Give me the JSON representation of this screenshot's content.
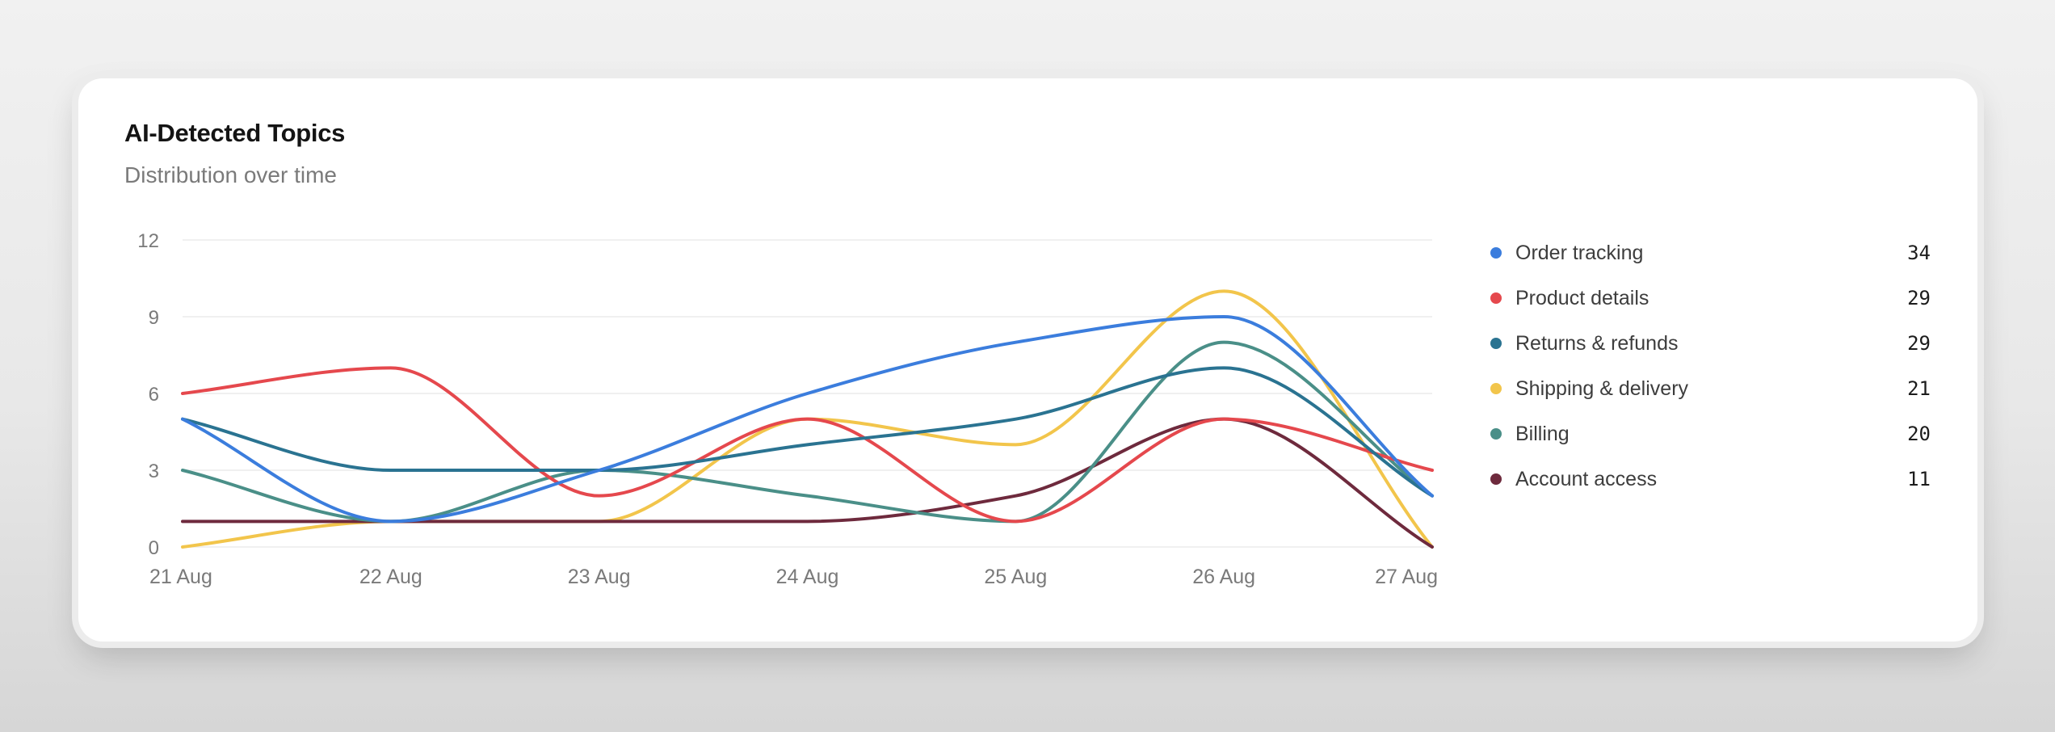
{
  "card": {
    "title": "AI-Detected Topics",
    "subtitle": "Distribution over time"
  },
  "chart_data": {
    "type": "line",
    "title": "AI-Detected Topics",
    "subtitle": "Distribution over time",
    "x": [
      "21 Aug",
      "22 Aug",
      "23 Aug",
      "24 Aug",
      "25 Aug",
      "26 Aug",
      "27 Aug"
    ],
    "y_ticks": [
      0,
      3,
      6,
      9,
      12
    ],
    "ylim": [
      0,
      12
    ],
    "grid": true,
    "legend_position": "right",
    "series": [
      {
        "name": "Order tracking",
        "color": "#3b7ddd",
        "total": "34",
        "values": [
          5,
          1,
          3,
          6,
          8,
          9,
          2
        ]
      },
      {
        "name": "Product details",
        "color": "#e5484d",
        "total": "29",
        "values": [
          6,
          7,
          2,
          5,
          1,
          5,
          3
        ]
      },
      {
        "name": "Returns & refunds",
        "color": "#2a7391",
        "total": "29",
        "values": [
          5,
          3,
          3,
          4,
          5,
          7,
          2
        ]
      },
      {
        "name": "Shipping & delivery",
        "color": "#f2c54b",
        "total": "21",
        "values": [
          0,
          1,
          1,
          5,
          4,
          10,
          0
        ]
      },
      {
        "name": "Billing",
        "color": "#4a8f88",
        "total": "20",
        "values": [
          3,
          1,
          3,
          2,
          1,
          8,
          2
        ]
      },
      {
        "name": "Account access",
        "color": "#6e2a3d",
        "total": "11",
        "values": [
          1,
          1,
          1,
          1,
          2,
          5,
          0
        ]
      }
    ]
  }
}
